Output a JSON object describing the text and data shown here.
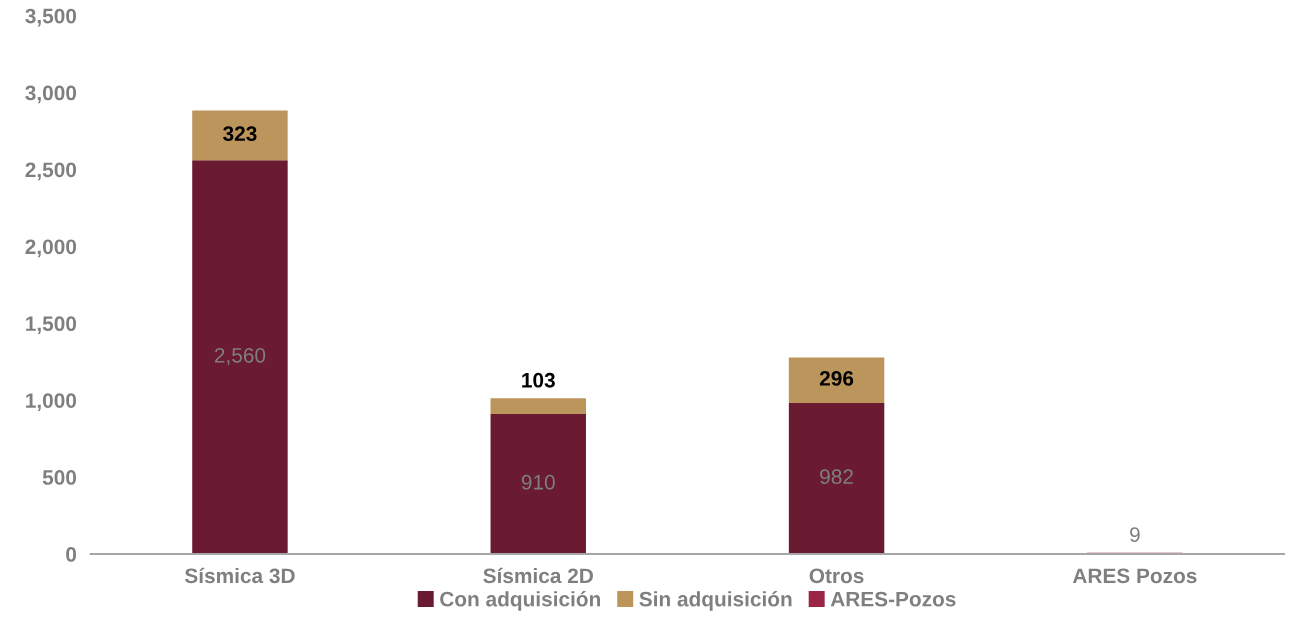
{
  "chart_data": {
    "type": "bar",
    "stacked": true,
    "categories": [
      "Sísmica 3D",
      "Sísmica 2D",
      "Otros",
      "ARES Pozos"
    ],
    "series": [
      {
        "name": "Con adquisición",
        "color": "#6a1b31",
        "values": [
          2560,
          910,
          982,
          null
        ],
        "value_labels": [
          "2,560",
          "910",
          "982",
          null
        ]
      },
      {
        "name": "Sin adquisición",
        "color": "#bc955c",
        "values": [
          323,
          103,
          296,
          null
        ],
        "value_labels": [
          "323",
          "103",
          "296",
          null
        ]
      },
      {
        "name": "ARES-Pozos",
        "color": "#9d2449",
        "values": [
          null,
          null,
          null,
          9
        ],
        "value_labels": [
          null,
          null,
          null,
          "9"
        ]
      }
    ],
    "ylim": [
      0,
      3500
    ],
    "yticks": [
      {
        "value": 0,
        "label": "0"
      },
      {
        "value": 500,
        "label": "500"
      },
      {
        "value": 1000,
        "label": "1,000"
      },
      {
        "value": 1500,
        "label": "1,500"
      },
      {
        "value": 2000,
        "label": "2,000"
      },
      {
        "value": 2500,
        "label": "2,500"
      },
      {
        "value": 3000,
        "label": "3,000"
      },
      {
        "value": 3500,
        "label": "3,500"
      }
    ],
    "grid": false,
    "legend": "bottom"
  }
}
